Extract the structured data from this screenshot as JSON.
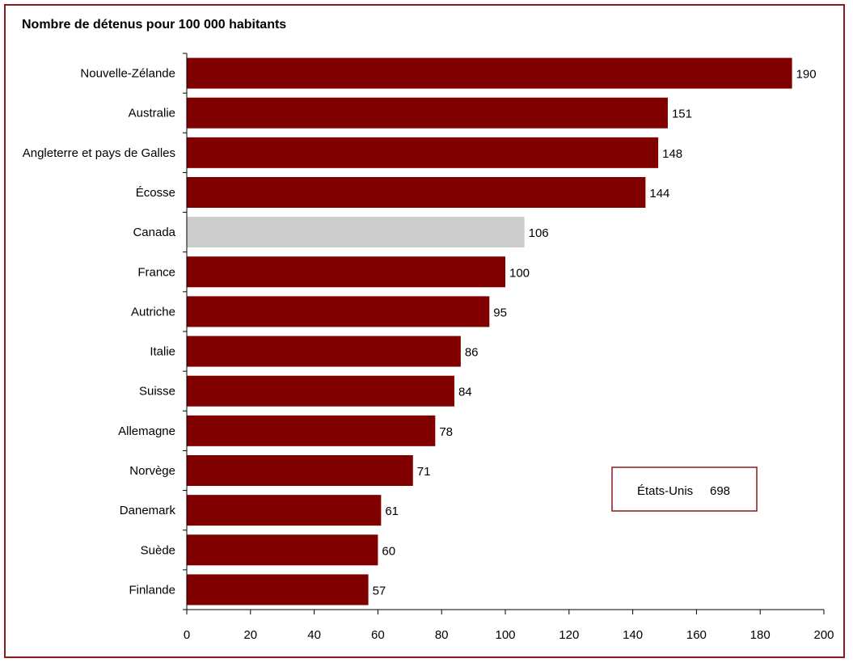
{
  "colors": {
    "bar": "#800000",
    "highlight_bar": "#cccccc",
    "frame": "#8b1a1a",
    "axis": "#000000"
  },
  "chart_data": {
    "type": "bar",
    "orientation": "horizontal",
    "title": "Nombre de détenus pour 100 000 habitants",
    "categories": [
      "Nouvelle-Zélande",
      "Australie",
      "Angleterre et pays de Galles",
      "Écosse",
      "Canada",
      "France",
      "Autriche",
      "Italie",
      "Suisse",
      "Allemagne",
      "Norvège",
      "Danemark",
      "Suède",
      "Finlande"
    ],
    "values": [
      190,
      151,
      148,
      144,
      106,
      100,
      95,
      86,
      84,
      78,
      71,
      61,
      60,
      57
    ],
    "highlighted_category": "Canada",
    "xlim": [
      0,
      200
    ],
    "xticks": [
      "0",
      "20",
      "40",
      "60",
      "80",
      "100",
      "120",
      "140",
      "160",
      "180",
      "200"
    ],
    "grid": false,
    "annotation": {
      "label": "États-Unis",
      "value": "698"
    }
  }
}
